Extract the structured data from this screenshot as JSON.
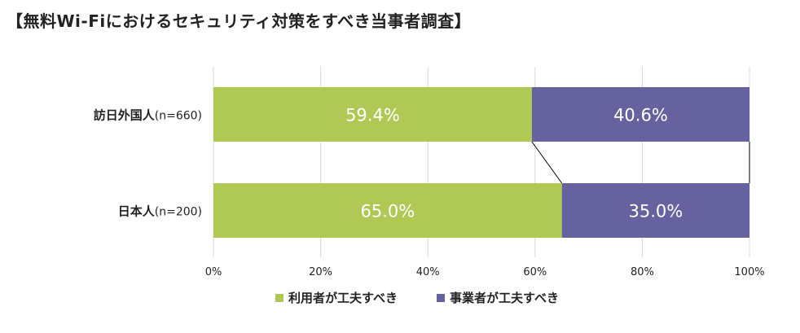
{
  "title": "【無料Wi-Fiにおけるセキュリティ対策をすべき当事者調査】",
  "chart_data": {
    "type": "bar",
    "orientation": "horizontal",
    "stacked": "percent",
    "categories": [
      {
        "label": "訪日外国人",
        "n": "(n=660)"
      },
      {
        "label": "日本人",
        "n": "(n=200)"
      }
    ],
    "series": [
      {
        "name": "利用者が工夫すべき",
        "values": [
          59.4,
          65.0
        ],
        "labels": [
          "59.4%",
          "65.0%"
        ],
        "color": "#b0c954"
      },
      {
        "name": "事業者が工夫すべき",
        "values": [
          40.6,
          35.0
        ],
        "labels": [
          "40.6%",
          "35.0%"
        ],
        "color": "#6662a0"
      }
    ],
    "xlim": [
      0,
      100
    ],
    "xticks": [
      "0%",
      "20%",
      "40%",
      "60%",
      "80%",
      "100%"
    ],
    "grid": true,
    "series_lines": true,
    "legend_position": "bottom"
  }
}
